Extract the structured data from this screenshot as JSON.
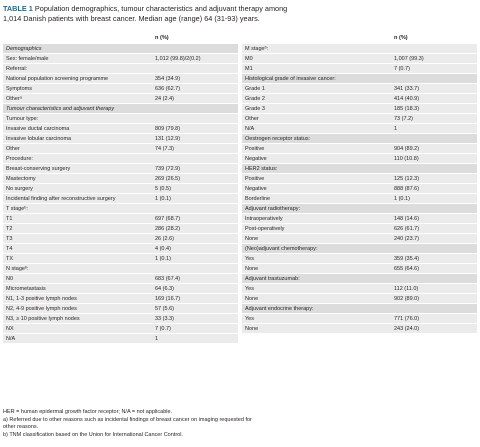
{
  "caption": {
    "label": "TABLE 1",
    "text_line1": "Population demographics, tumour characteristics and adjuvant therapy among",
    "text_line2": "1,014 Danish patients with breast cancer. Median age (range) 64 (31-93) years."
  },
  "column_header": "n (%)",
  "left_rows": [
    {
      "label": "Demographics",
      "value": "",
      "style": "sec"
    },
    {
      "label": "Sex: female/male",
      "value": "1,012 (99.8)/2(0.2)",
      "style": "plain"
    },
    {
      "label": "Referral:",
      "value": "",
      "style": "plain"
    },
    {
      "label": "National population screening programme",
      "value": "354 (34.9)",
      "style": "plain"
    },
    {
      "label": "Symptoms",
      "value": "636 (62.7)",
      "style": "plain"
    },
    {
      "label": "Otherᵃ",
      "value": "24 (2.4)",
      "style": "plain"
    },
    {
      "label": "Tumour characteristics and adjuvant therapy",
      "value": "",
      "style": "sec"
    },
    {
      "label": "Tumour type:",
      "value": "",
      "style": "plain"
    },
    {
      "label": "Invasive ductal carcinoma",
      "value": "809 (79.8)",
      "style": "plain"
    },
    {
      "label": "Invasive lobular carcinoma",
      "value": "131 (12.9)",
      "style": "plain"
    },
    {
      "label": "Other",
      "value": "74 (7.3)",
      "style": "plain"
    },
    {
      "label": "Procedure:",
      "value": "",
      "style": "plain"
    },
    {
      "label": "Breast-conserving surgery",
      "value": "739 (72.9)",
      "style": "plain"
    },
    {
      "label": "Mastectomy",
      "value": "269 (26.5)",
      "style": "plain"
    },
    {
      "label": "No surgery",
      "value": "5 (0.5)",
      "style": "plain"
    },
    {
      "label": "Incidental finding after reconstructive surgery",
      "value": "1 (0.1)",
      "style": "plain"
    },
    {
      "label": "T stageᵇ:",
      "value": "",
      "style": "plain"
    },
    {
      "label": "T1",
      "value": "697 (68.7)",
      "style": "plain"
    },
    {
      "label": "T2",
      "value": "286 (28.2)",
      "style": "plain"
    },
    {
      "label": "T3",
      "value": "26 (2.6)",
      "style": "plain"
    },
    {
      "label": "T4",
      "value": "4 (0.4)",
      "style": "plain"
    },
    {
      "label": "TX",
      "value": "1 (0.1)",
      "style": "plain"
    },
    {
      "label": "N stageᵇ:",
      "value": "",
      "style": "plain"
    },
    {
      "label": "N0",
      "value": "683 (67.4)",
      "style": "plain"
    },
    {
      "label": "Micrometastasis",
      "value": "64 (6.3)",
      "style": "plain"
    },
    {
      "label": "N1, 1-3 positive lymph nodes",
      "value": "169 (16.7)",
      "style": "plain"
    },
    {
      "label": "N2, 4-9 positive lymph nodes",
      "value": "57 (5.6)",
      "style": "plain"
    },
    {
      "label": "N3, ≥ 10 positive lymph nodes",
      "value": "33 (3.3)",
      "style": "plain"
    },
    {
      "label": "NX",
      "value": "7 (0.7)",
      "style": "plain"
    },
    {
      "label": "N/A",
      "value": "1",
      "style": "plain"
    }
  ],
  "right_rows": [
    {
      "label": "M stageᵇ:",
      "value": "",
      "style": "plain"
    },
    {
      "label": "M0",
      "value": "1,007 (99.3)",
      "style": "plain"
    },
    {
      "label": "M1",
      "value": "7 (0.7)",
      "style": "plain"
    },
    {
      "label": "Histological grade of invasive cancer:",
      "value": "",
      "style": "head"
    },
    {
      "label": "Grade 1",
      "value": "341 (33.7)",
      "style": "plain"
    },
    {
      "label": "Grade 2",
      "value": "414 (40.9)",
      "style": "plain"
    },
    {
      "label": "Grade 3",
      "value": "185 (18.3)",
      "style": "plain"
    },
    {
      "label": "Other",
      "value": "73 (7.2)",
      "style": "plain"
    },
    {
      "label": "N/A",
      "value": "1",
      "style": "plain"
    },
    {
      "label": "Oestrogen receptor status:",
      "value": "",
      "style": "head"
    },
    {
      "label": "Positive",
      "value": "904 (89.2)",
      "style": "plain"
    },
    {
      "label": "Negative",
      "value": "110 (10.8)",
      "style": "plain"
    },
    {
      "label": "HER2 status:",
      "value": "",
      "style": "head"
    },
    {
      "label": "Positive",
      "value": "125 (12.3)",
      "style": "plain"
    },
    {
      "label": "Negative",
      "value": "888 (87.6)",
      "style": "plain"
    },
    {
      "label": "Borderline",
      "value": "1 (0.1)",
      "style": "plain"
    },
    {
      "label": "Adjuvant radiotherapy:",
      "value": "",
      "style": "head"
    },
    {
      "label": "Intraoperatively",
      "value": "148 (14.6)",
      "style": "plain"
    },
    {
      "label": "Post-operatively",
      "value": "626 (61.7)",
      "style": "plain"
    },
    {
      "label": "None",
      "value": "240 (23.7)",
      "style": "plain"
    },
    {
      "label": "(Neo)adjuvant chemotherapy:",
      "value": "",
      "style": "head"
    },
    {
      "label": "Yes",
      "value": "359 (35.4)",
      "style": "plain"
    },
    {
      "label": "None",
      "value": "655 (64.6)",
      "style": "plain"
    },
    {
      "label": "Adjuvant trastuzumab:",
      "value": "",
      "style": "head"
    },
    {
      "label": "Yes",
      "value": "112 (11.0)",
      "style": "plain"
    },
    {
      "label": "None",
      "value": "902 (89.0)",
      "style": "plain"
    },
    {
      "label": "Adjuvant endocrine therapy:",
      "value": "",
      "style": "head"
    },
    {
      "label": "Yes",
      "value": "771 (76.0)",
      "style": "plain"
    },
    {
      "label": "None",
      "value": "243 (24.0)",
      "style": "plain"
    }
  ],
  "footnotes": [
    "HER = human epidermal growth factor receptor; N/A = not applicable.",
    "a) Referred due to other reasons such as incidental findings of breast cancer on imaging requested for",
    "other reasons.",
    "b) TNM classification based on the Union for International Cancer Control."
  ]
}
